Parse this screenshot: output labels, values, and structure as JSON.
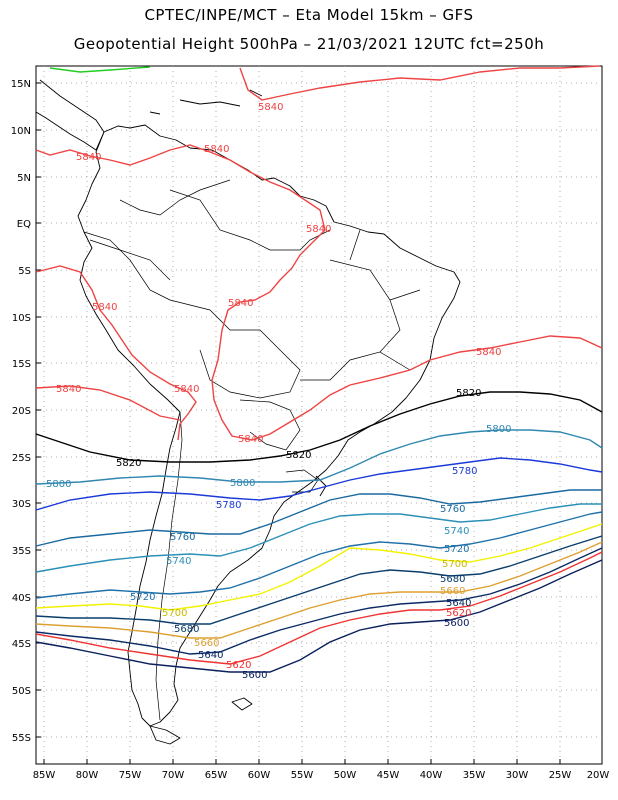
{
  "header": {
    "line1": "CPTEC/INPE/MCT –  Eta Model 15km – GFS",
    "line2": "Geopotential Height 500hPa – 21/03/2021 12UTC fct=250h"
  },
  "axes": {
    "lat_labels": [
      "15N",
      "10N",
      "5N",
      "EQ",
      "5S",
      "10S",
      "15S",
      "20S",
      "25S",
      "30S",
      "35S",
      "40S",
      "45S",
      "50S",
      "55S"
    ],
    "lon_labels": [
      "85W",
      "80W",
      "75W",
      "70W",
      "65W",
      "60W",
      "55W",
      "50W",
      "45W",
      "40W",
      "35W",
      "30W",
      "25W",
      "20W"
    ]
  },
  "contours": {
    "c5600": "5600",
    "c5620": "5620",
    "c5640": "5640",
    "c5660": "5660",
    "c5680": "5680",
    "c5700": "5700",
    "c5720": "5720",
    "c5740": "5740",
    "c5760": "5760",
    "c5780": "5780",
    "c5800": "5800",
    "c5820": "5820",
    "c5840": "5840"
  },
  "colors": {
    "c5600": "#0a1f5c",
    "c5620": "#ee3333",
    "c5640": "#0a2a66",
    "c5660": "#dda030",
    "c5680": "#0a3d6b",
    "c5700": "#f2f200",
    "c5720": "#1f6fa8",
    "c5740": "#2a90b8",
    "c5760": "#1a6aa0",
    "c5780": "#1a3ad8",
    "c5800": "#3088b0",
    "c5820": "#000000",
    "c5840": "#ee4444",
    "c5860": "#22cc22"
  }
}
